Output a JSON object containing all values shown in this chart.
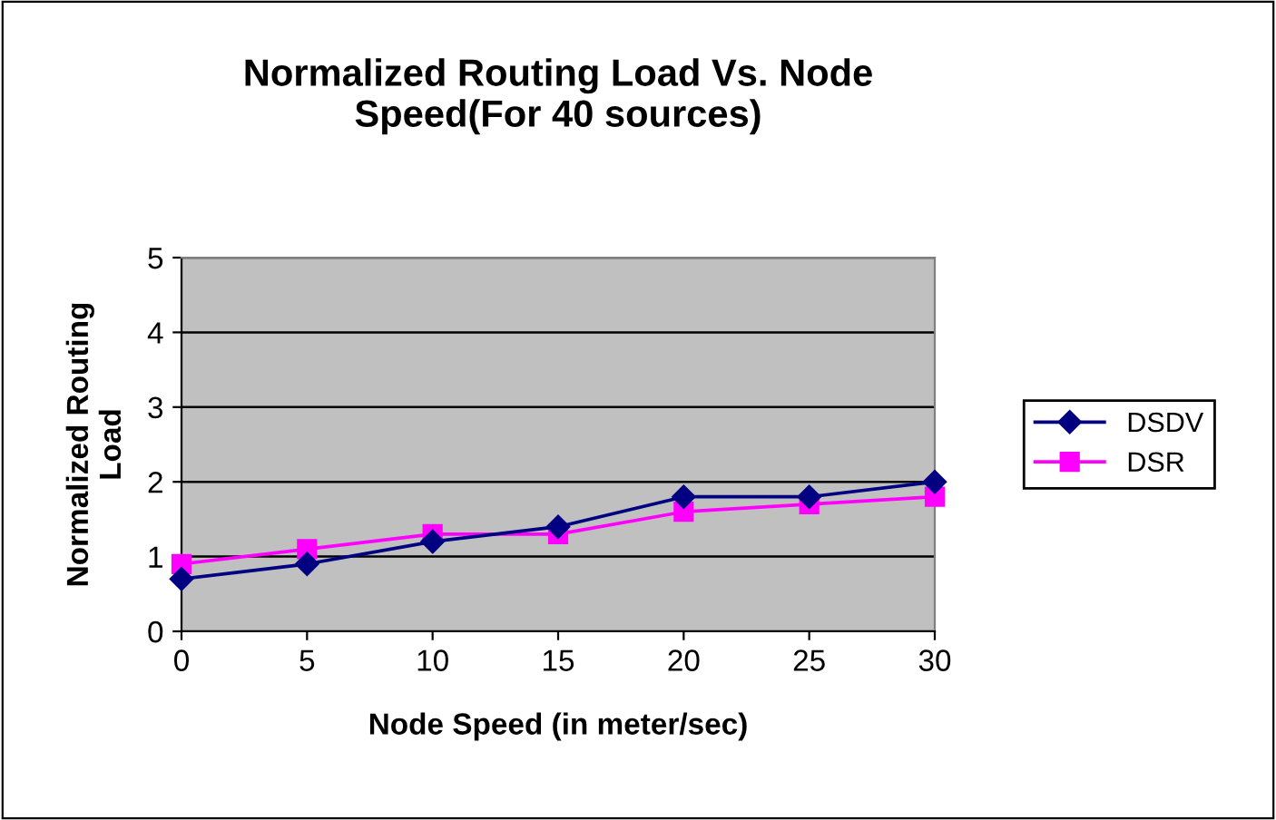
{
  "chart_data": {
    "type": "line",
    "title": "Normalized Routing Load Vs. Node\nSpeed(For 40 sources)",
    "xlabel": "Node Speed (in meter/sec)",
    "ylabel": "Normalized Routing\nLoad",
    "x": [
      0,
      5,
      10,
      15,
      20,
      25,
      30
    ],
    "series": [
      {
        "name": "DSDV",
        "color": "#000080",
        "marker": "diamond",
        "values": [
          0.7,
          0.9,
          1.2,
          1.4,
          1.8,
          1.8,
          2.0
        ]
      },
      {
        "name": "DSR",
        "color": "#ff00ff",
        "marker": "square",
        "values": [
          0.9,
          1.1,
          1.3,
          1.3,
          1.6,
          1.7,
          1.8
        ]
      }
    ],
    "xlim": [
      0,
      30
    ],
    "xticks": [
      0,
      5,
      10,
      15,
      20,
      25,
      30
    ],
    "ylim": [
      0,
      5
    ],
    "yticks": [
      0,
      1,
      2,
      3,
      4,
      5
    ],
    "grid": "y",
    "legend": "right",
    "line_style": "solid"
  }
}
